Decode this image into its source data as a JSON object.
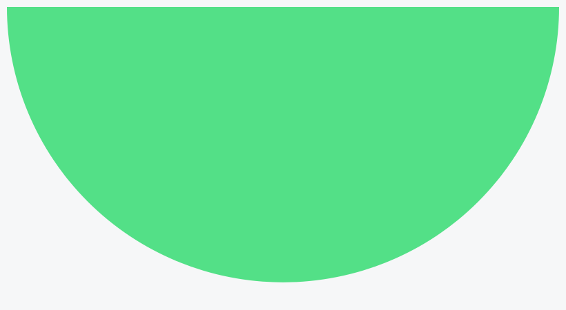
{
  "colors": {
    "background": "#f6f7f8",
    "shape_fill": "#53e087"
  },
  "shape": {
    "kind": "half-circle",
    "orientation": "flat-edge-top"
  }
}
